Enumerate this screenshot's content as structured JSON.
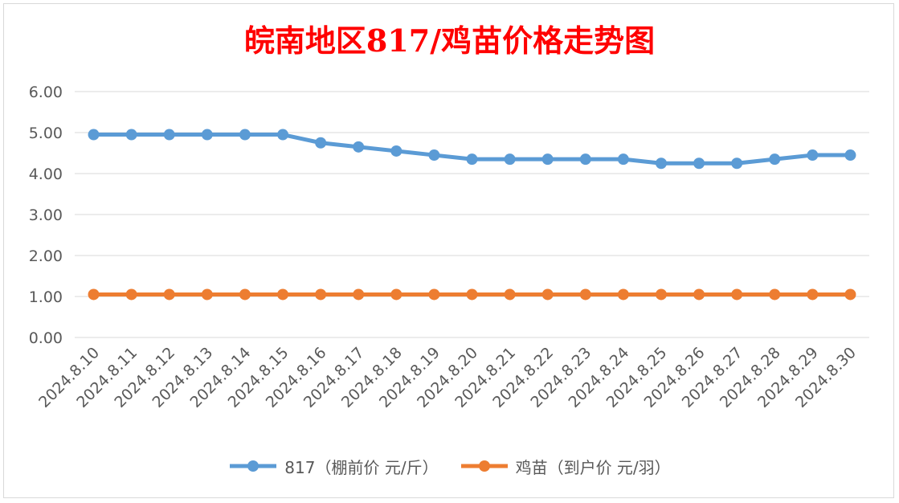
{
  "chart_data": {
    "type": "line",
    "title": "皖南地区817/鸡苗价格走势图",
    "categories": [
      "2024.8.10",
      "2024.8.11",
      "2024.8.12",
      "2024.8.13",
      "2024.8.14",
      "2024.8.15",
      "2024.8.16",
      "2024.8.17",
      "2024.8.18",
      "2024.8.19",
      "2024.8.20",
      "2024.8.21",
      "2024.8.22",
      "2024.8.23",
      "2024.8.24",
      "2024.8.25",
      "2024.8.26",
      "2024.8.27",
      "2024.8.28",
      "2024.8.29",
      "2024.8.30"
    ],
    "series": [
      {
        "name": "817（棚前价 元/斤）",
        "color": "#5b9bd5",
        "values": [
          4.95,
          4.95,
          4.95,
          4.95,
          4.95,
          4.95,
          4.75,
          4.65,
          4.55,
          4.45,
          4.35,
          4.35,
          4.35,
          4.35,
          4.35,
          4.25,
          4.25,
          4.25,
          4.35,
          4.45,
          4.45
        ]
      },
      {
        "name": "鸡苗（到户价 元/羽）",
        "color": "#ed7d31",
        "values": [
          1.05,
          1.05,
          1.05,
          1.05,
          1.05,
          1.05,
          1.05,
          1.05,
          1.05,
          1.05,
          1.05,
          1.05,
          1.05,
          1.05,
          1.05,
          1.05,
          1.05,
          1.05,
          1.05,
          1.05,
          1.05
        ]
      }
    ],
    "yticks": [
      "0.00",
      "1.00",
      "2.00",
      "3.00",
      "4.00",
      "5.00",
      "6.00"
    ],
    "ylim": [
      0,
      6
    ],
    "grid": true,
    "legend_position": "bottom"
  }
}
